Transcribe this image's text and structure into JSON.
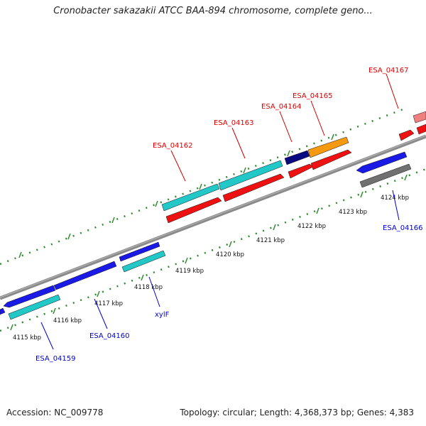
{
  "header": {
    "title": "Cronobacter sakazakii ATCC BAA-894 chromosome, complete geno..."
  },
  "footer": {
    "accession": "Accession: NC_009778",
    "summary": "Topology: circular; Length: 4,368,373 bp; Genes: 4,383"
  },
  "colors": {
    "backbone": "#8a8a8a",
    "tick": "#2e8b2e",
    "cds_blue": "#1a1ae6",
    "cds_cyan": "#22c8c8",
    "cds_red": "#ee1111",
    "cds_navy": "#0a0a80",
    "cds_orange": "#f59a10",
    "cds_gray": "#707070",
    "cds_pink": "#f08080",
    "label_forward": "#dd0000",
    "label_reverse": "#0000cc"
  },
  "scale_labels": [
    "4115 kbp",
    "4116 kbp",
    "4117 kbp",
    "4118 kbp",
    "4119 kbp",
    "4120 kbp",
    "4121 kbp",
    "4122 kbp",
    "4123 kbp",
    "4124 kbp"
  ],
  "gene_labels": {
    "forward": [
      "ESA_04162",
      "ESA_04163",
      "ESA_04164",
      "ESA_04165",
      "ESA_04167"
    ],
    "reverse": [
      "ESA_04159",
      "ESA_04160",
      "xylF",
      "ESA_04166"
    ]
  }
}
